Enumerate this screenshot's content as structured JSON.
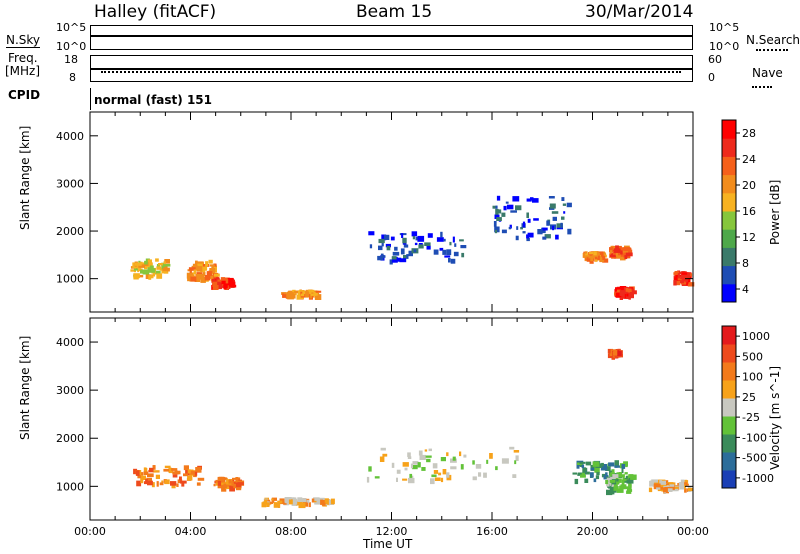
{
  "header": {
    "station": "Halley (fitACF)",
    "beam": "Beam 15",
    "date": "30/Mar/2014"
  },
  "top_panels": {
    "nsky_label": "N.Sky",
    "nsearch_label": "N.Search",
    "nsky_ticks": [
      "10^5",
      "10^0"
    ],
    "nsearch_ticks": [
      "10^5",
      "10^0"
    ],
    "freq_label_1": "Freq.",
    "freq_label_2": "[MHz]",
    "freq_ticks": [
      "18",
      "8"
    ],
    "nave_label": "Nave",
    "nave_ticks": [
      "60",
      "0"
    ],
    "cpid_label": "CPID",
    "cpid_value": "normal (fast) 151"
  },
  "chart_data": [
    {
      "type": "heatmap",
      "ylabel": "Slant Range [km]",
      "yticks": [
        "1000",
        "2000",
        "3000",
        "4000"
      ],
      "ylim": [
        300,
        4500
      ],
      "colorbar_label": "Power [dB]",
      "colorbar_ticks": [
        "28",
        "24",
        "20",
        "16",
        "12",
        "8",
        "4"
      ],
      "colors": [
        "#0000ff",
        "#1e4db4",
        "#3a7a6a",
        "#4ea84a",
        "#86c63c",
        "#f7b221",
        "#f28c1c",
        "#f5601a",
        "#ee2a1c",
        "#ff0000"
      ],
      "blobs": [
        {
          "t": 2.3,
          "r": 1250,
          "dt": 1.4,
          "dr": 380,
          "level": 5
        },
        {
          "t": 4.4,
          "r": 1200,
          "dt": 1.1,
          "dr": 400,
          "level": 6
        },
        {
          "t": 5.2,
          "r": 950,
          "dt": 0.8,
          "dr": 170,
          "level": 8
        },
        {
          "t": 8.3,
          "r": 720,
          "dt": 1.4,
          "dr": 110,
          "level": 6
        },
        {
          "t": 13.0,
          "r": 1700,
          "dt": 4.0,
          "dr": 600,
          "level": 1
        },
        {
          "t": 17.5,
          "r": 2300,
          "dt": 3.0,
          "dr": 900,
          "level": 1
        },
        {
          "t": 20.0,
          "r": 1500,
          "dt": 0.8,
          "dr": 160,
          "level": 6
        },
        {
          "t": 21.0,
          "r": 1600,
          "dt": 0.7,
          "dr": 200,
          "level": 7
        },
        {
          "t": 21.2,
          "r": 750,
          "dt": 0.7,
          "dr": 200,
          "level": 8
        },
        {
          "t": 23.5,
          "r": 1050,
          "dt": 0.6,
          "dr": 250,
          "level": 8
        }
      ]
    },
    {
      "type": "heatmap",
      "xlabel": "Time UT",
      "xticks": [
        "00:00",
        "04:00",
        "08:00",
        "12:00",
        "16:00",
        "20:00",
        "00:00"
      ],
      "ylabel": "Slant Range [km]",
      "yticks": [
        "1000",
        "2000",
        "3000",
        "4000"
      ],
      "ylim": [
        300,
        4500
      ],
      "colorbar_label": "Velocity [m s^-1]",
      "colorbar_ticks": [
        "1000",
        "500",
        "100",
        "25",
        "-25",
        "-100",
        "-500",
        "-1000"
      ],
      "colors": [
        "#1a3fb5",
        "#2c6d9a",
        "#3a8b5a",
        "#62c238",
        "#c8c8c0",
        "#f7a21a",
        "#f37a1b",
        "#ee4a1c",
        "#e41a1c"
      ],
      "blobs": [
        {
          "t": 3.0,
          "r": 1250,
          "dt": 2.6,
          "dr": 400,
          "level": 6
        },
        {
          "t": 5.4,
          "r": 1100,
          "dt": 1.0,
          "dr": 200,
          "level": 6
        },
        {
          "t": 8.2,
          "r": 720,
          "dt": 2.8,
          "dr": 120,
          "level": 5
        },
        {
          "t": 14.0,
          "r": 1500,
          "dt": 6.0,
          "dr": 700,
          "level": 4
        },
        {
          "t": 20.2,
          "r": 1350,
          "dt": 2.2,
          "dr": 400,
          "level": 2
        },
        {
          "t": 21.0,
          "r": 1100,
          "dt": 1.0,
          "dr": 400,
          "level": 3
        },
        {
          "t": 23.0,
          "r": 1050,
          "dt": 1.6,
          "dr": 200,
          "level": 5
        },
        {
          "t": 20.8,
          "r": 3800,
          "dt": 0.4,
          "dr": 120,
          "level": 7
        }
      ]
    }
  ]
}
